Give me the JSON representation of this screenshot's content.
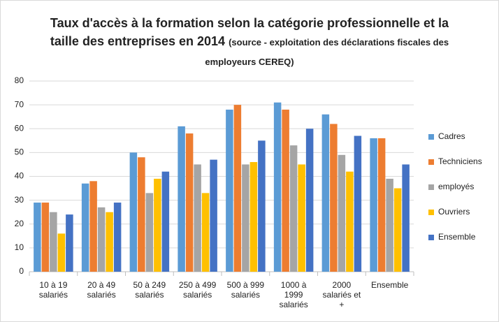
{
  "chart_data": {
    "type": "bar",
    "title": "Taux d'accès à la formation selon la catégorie professionnelle et la taille des entreprises en 2014",
    "subtitle": "(source - exploitation des déclarations fiscales des employeurs CEREQ)",
    "categories": [
      "10 à 19 salariés",
      "20 à 49 salariés",
      "50 à 249 salariés",
      "250 à 499 salariés",
      "500 à 999 salariés",
      "1000 à 1999 salariés",
      "2000 salariés et +",
      "Ensemble"
    ],
    "series": [
      {
        "name": "Cadres",
        "color": "#5B9BD5",
        "values": [
          29,
          37,
          50,
          61,
          68,
          71,
          66,
          56
        ]
      },
      {
        "name": "Techniciens",
        "color": "#ED7D31",
        "values": [
          29,
          38,
          48,
          58,
          70,
          68,
          62,
          56
        ]
      },
      {
        "name": "employés",
        "color": "#A5A5A5",
        "values": [
          25,
          27,
          33,
          45,
          45,
          53,
          49,
          39
        ]
      },
      {
        "name": "Ouvriers",
        "color": "#FFC000",
        "values": [
          16,
          25,
          39,
          33,
          46,
          45,
          42,
          35
        ]
      },
      {
        "name": "Ensemble",
        "color": "#4472C4",
        "values": [
          24,
          29,
          42,
          47,
          55,
          60,
          57,
          45
        ]
      }
    ],
    "ylim": [
      0,
      80
    ],
    "yticks": [
      0,
      10,
      20,
      30,
      40,
      50,
      60,
      70,
      80
    ],
    "grid": true,
    "legend": "right"
  }
}
